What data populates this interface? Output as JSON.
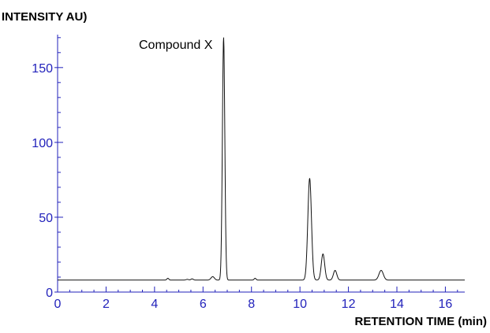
{
  "chart_data": {
    "type": "line",
    "title": "",
    "xlabel": "RETENTION TIME (min)",
    "ylabel": "INTENSITY AU)",
    "xlim": [
      0,
      16.8
    ],
    "ylim": [
      0,
      172
    ],
    "x_ticks": [
      0,
      2,
      4,
      6,
      8,
      10,
      12,
      14,
      16
    ],
    "y_ticks": [
      0,
      50,
      100,
      150
    ],
    "grid": false,
    "legend": "none",
    "colors": {
      "axis": "#2222bb",
      "tick_label": "#2222bb",
      "trace": "#111111",
      "text": "#000000"
    },
    "baseline": 8,
    "peaks": [
      {
        "x": 4.55,
        "height": 1.2,
        "width": 0.04
      },
      {
        "x": 5.35,
        "height": 0.5,
        "width": 0.05
      },
      {
        "x": 5.55,
        "height": 0.8,
        "width": 0.05
      },
      {
        "x": 6.4,
        "height": 2.3,
        "width": 0.07
      },
      {
        "x": 6.85,
        "height": 162,
        "width": 0.05
      },
      {
        "x": 8.15,
        "height": 1.2,
        "width": 0.04
      },
      {
        "x": 10.4,
        "height": 68,
        "width": 0.075
      },
      {
        "x": 10.95,
        "height": 17.5,
        "width": 0.07
      },
      {
        "x": 11.45,
        "height": 6.5,
        "width": 0.07
      },
      {
        "x": 13.35,
        "height": 6.5,
        "width": 0.09
      }
    ],
    "annotations": [
      {
        "text": "Compound X",
        "x": 6.85,
        "y": 162
      }
    ]
  }
}
